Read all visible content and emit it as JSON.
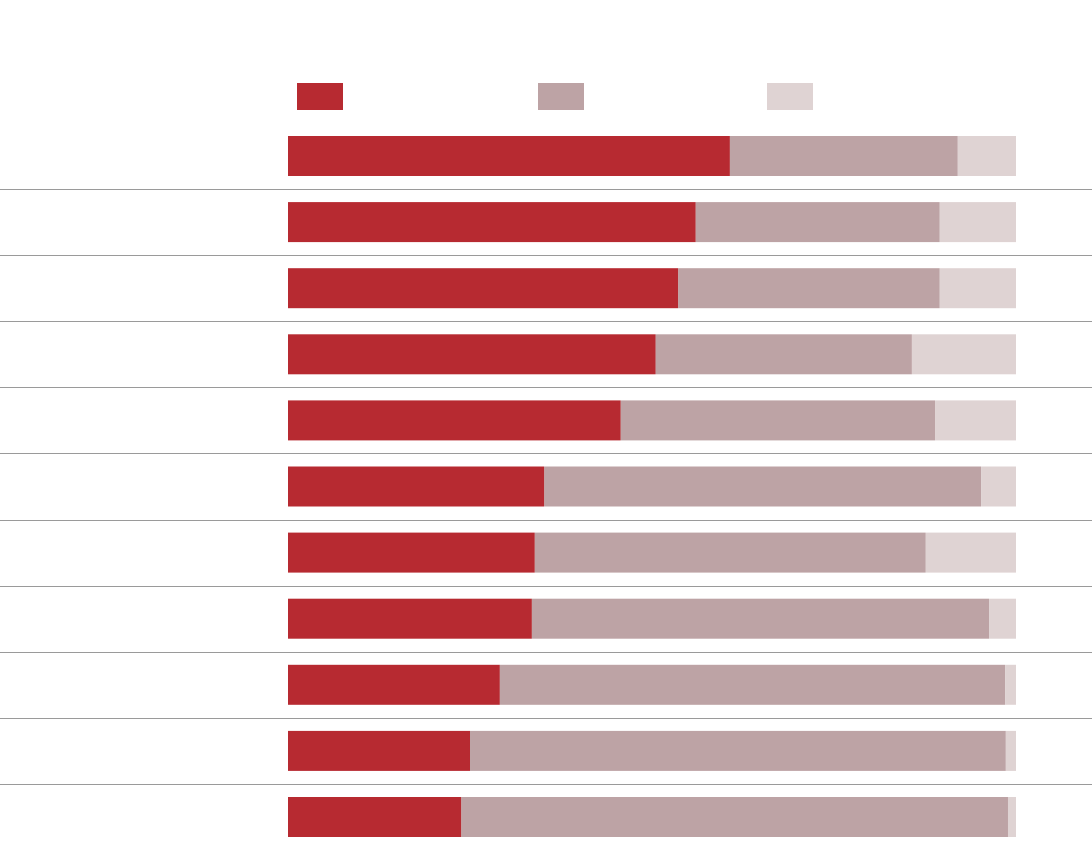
{
  "colors": {
    "series_1": "#b72a31",
    "series_2": "#bda3a5",
    "series_3": "#dfd3d3",
    "divider": "#9a9a9a",
    "background": "#ffffff"
  },
  "chart_data": {
    "type": "bar",
    "orientation": "horizontal",
    "stacked": true,
    "normalized": true,
    "xlim": [
      0,
      100
    ],
    "grid": false,
    "legend_position": "top",
    "title": "",
    "xlabel": "",
    "ylabel": "",
    "categories": [
      "",
      "",
      "",
      "",
      "",
      "",
      "",
      "",
      "",
      "",
      ""
    ],
    "series": [
      {
        "color": "#b72a31",
        "values": [
          60.7,
          56.0,
          53.6,
          50.5,
          45.7,
          35.2,
          33.9,
          33.5,
          29.1,
          25.0,
          23.8
        ]
      },
      {
        "color": "#bda3a5",
        "values": [
          31.3,
          33.5,
          35.9,
          35.2,
          43.2,
          60.0,
          53.7,
          62.8,
          69.4,
          73.6,
          75.1
        ]
      },
      {
        "color": "#dfd3d3",
        "values": [
          8.0,
          10.5,
          10.5,
          14.3,
          11.1,
          4.8,
          12.4,
          3.7,
          1.5,
          1.4,
          1.1
        ]
      }
    ]
  }
}
